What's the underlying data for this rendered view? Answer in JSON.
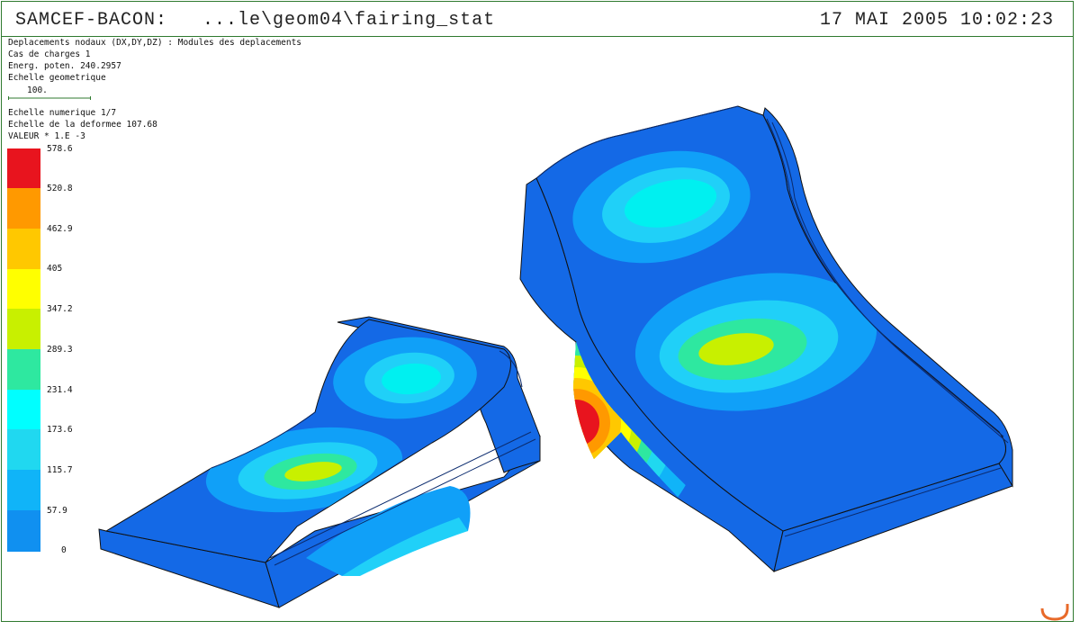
{
  "header": {
    "app_title": "SAMCEF-BACON:   ...le\\geom04\\fairing_stat",
    "datetime": "17 MAI 2005 10:02:23"
  },
  "info": {
    "line1": "Deplacements nodaux (DX,DY,DZ) : Modules des deplacements",
    "line2": "Cas de charges 1",
    "line3": "Energ. poten. 240.2957",
    "line4": "Echelle geometrique",
    "scale_value": "100.",
    "line5": "Echelle numerique 1/7",
    "line6": "Echelle de la deformee 107.68",
    "line7": "VALEUR * 1.E -3"
  },
  "legend": {
    "labels": [
      "578.6",
      "520.8",
      "462.9",
      "405",
      "347.2",
      "289.3",
      "231.4",
      "173.6",
      "115.7",
      "57.9",
      "0"
    ],
    "colors": [
      "#e8141e",
      "#ff9900",
      "#ffc800",
      "#ffff00",
      "#c8f000",
      "#2ee8a0",
      "#00ffff",
      "#20d8f0",
      "#10b4f8",
      "#1090f0",
      "#1060e8"
    ]
  },
  "colors": {
    "frame": "#2f7a2f",
    "body_blue": "#1469e6"
  }
}
